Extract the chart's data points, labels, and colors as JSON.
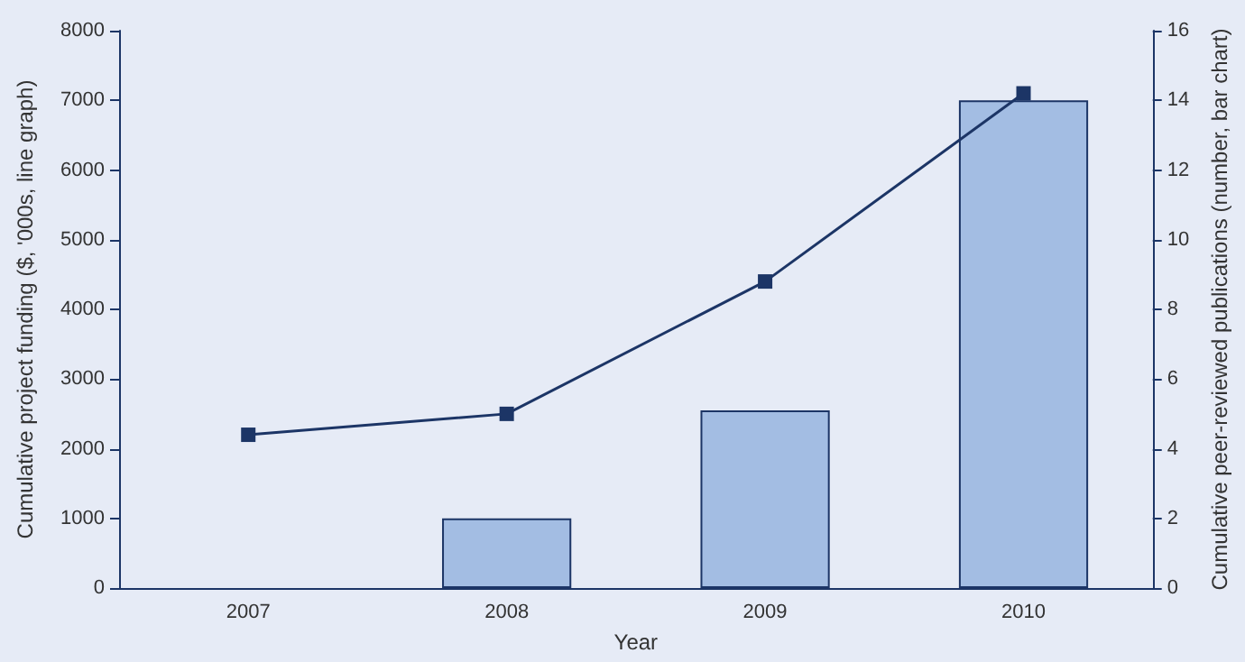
{
  "chart_data": {
    "type": "bar",
    "categories": [
      "2007",
      "2008",
      "2009",
      "2010"
    ],
    "xlabel": "Year",
    "ylabel": "Cumulative project funding ($, '000s, line graph)",
    "y2label": "Cumulative peer-reviewed publications (number, bar chart)",
    "series": [
      {
        "axis": "y2",
        "color": "#a3bde3",
        "values": [
          null,
          2,
          5.1,
          14
        ]
      },
      {
        "type": "line",
        "axis": "y",
        "color": "#1c3566",
        "values": [
          2200,
          2500,
          4400,
          7100
        ],
        "marker": "square",
        "line_style": "solid"
      }
    ],
    "ylim": [
      0,
      8000
    ],
    "yticks": [
      0,
      1000,
      2000,
      3000,
      4000,
      5000,
      6000,
      7000,
      8000
    ],
    "y2lim": [
      0,
      16
    ],
    "y2ticks": [
      0,
      2,
      4,
      6,
      8,
      10,
      12,
      14,
      16
    ],
    "grid": false
  }
}
